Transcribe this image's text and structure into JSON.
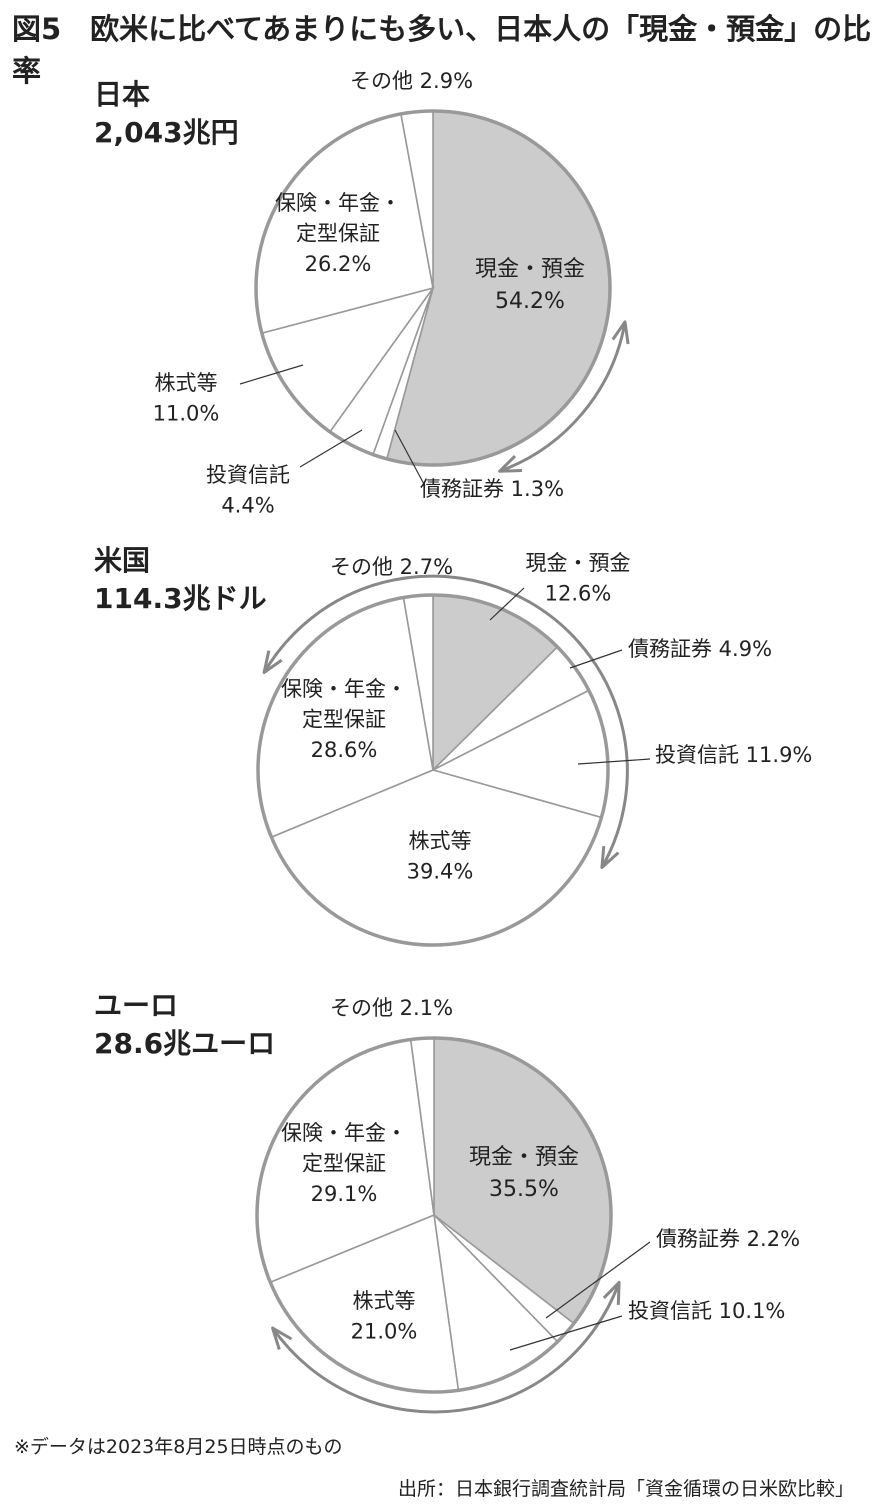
{
  "title": "図5　欧米に比べてあまりにも多い、日本人の「現金・預金」の比率",
  "footnote": "※データは2023年8月25日時点のもの",
  "source": "出所：日本銀行調査統計局「資金循環の日米欧比較」",
  "colors": {
    "highlight": "#cccccc",
    "base": "#ffffff",
    "stroke": "#999999",
    "arrow": "#888888",
    "text": "#222222"
  },
  "chart_data": [
    {
      "type": "pie",
      "region": "日本",
      "total": "2,043兆円",
      "slices": [
        {
          "label": "現金・預金",
          "value": 54.2,
          "text": "54.2%",
          "highlight": true
        },
        {
          "label": "債務証券",
          "value": 1.3,
          "text": "1.3%"
        },
        {
          "label": "投資信託",
          "value": 4.4,
          "text": "4.4%"
        },
        {
          "label": "株式等",
          "value": 11.0,
          "text": "11.0%"
        },
        {
          "label": "保険・年金・定型保証",
          "value": 26.2,
          "text": "26.2%"
        },
        {
          "label": "その他",
          "value": 2.9,
          "text": "2.9%"
        }
      ]
    },
    {
      "type": "pie",
      "region": "米国",
      "total": "114.3兆ドル",
      "slices": [
        {
          "label": "現金・預金",
          "value": 12.6,
          "text": "12.6%",
          "highlight": true
        },
        {
          "label": "債務証券",
          "value": 4.9,
          "text": "4.9%"
        },
        {
          "label": "投資信託",
          "value": 11.9,
          "text": "11.9%"
        },
        {
          "label": "株式等",
          "value": 39.4,
          "text": "39.4%"
        },
        {
          "label": "保険・年金・定型保証",
          "value": 28.6,
          "text": "28.6%"
        },
        {
          "label": "その他",
          "value": 2.7,
          "text": "2.7%"
        }
      ]
    },
    {
      "type": "pie",
      "region": "ユーロ",
      "total": "28.6兆ユーロ",
      "slices": [
        {
          "label": "現金・預金",
          "value": 35.5,
          "text": "35.5%",
          "highlight": true
        },
        {
          "label": "債務証券",
          "value": 2.2,
          "text": "2.2%"
        },
        {
          "label": "投資信託",
          "value": 10.1,
          "text": "10.1%"
        },
        {
          "label": "株式等",
          "value": 21.0,
          "text": "21.0%"
        },
        {
          "label": "保険・年金・定型保証",
          "value": 29.1,
          "text": "29.1%"
        },
        {
          "label": "その他",
          "value": 2.1,
          "text": "2.1%"
        }
      ]
    }
  ]
}
